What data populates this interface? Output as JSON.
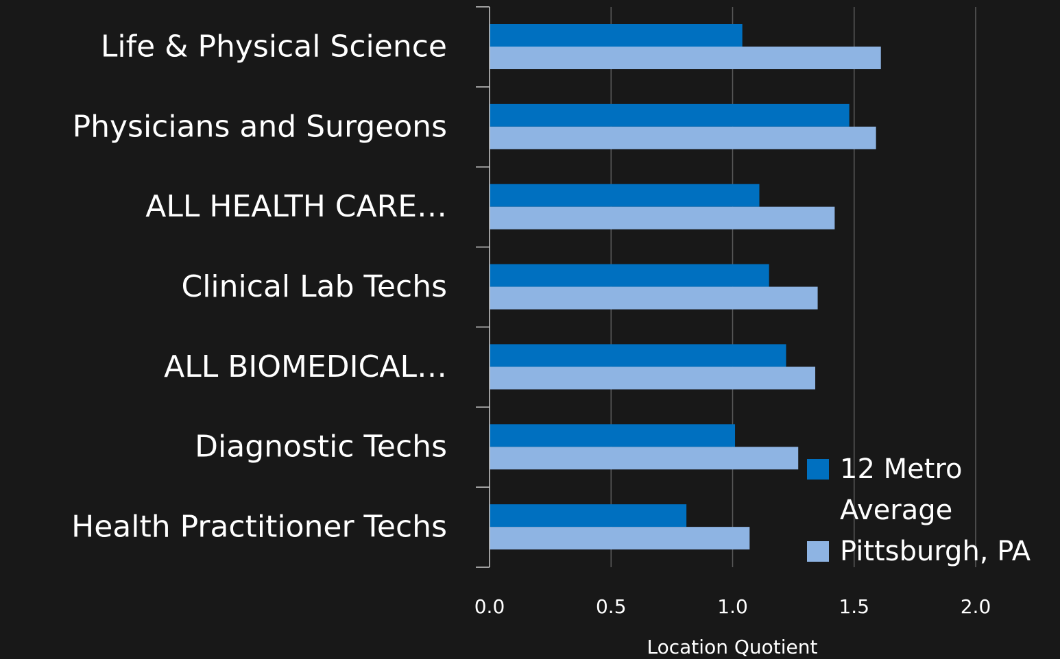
{
  "chart_data": {
    "type": "bar",
    "orientation": "horizontal",
    "categories": [
      "Life & Physical Science",
      "Physicians and Surgeons",
      "ALL HEALTH CARE…",
      "Clinical Lab Techs",
      "ALL BIOMEDICAL…",
      "Diagnostic Techs",
      "Health Practitioner Techs"
    ],
    "series": [
      {
        "name": "12 Metro Average",
        "color": "#0070c0",
        "values": [
          1.04,
          1.48,
          1.11,
          1.15,
          1.22,
          1.01,
          0.81
        ]
      },
      {
        "name": "Pittsburgh, PA",
        "color": "#8eb4e3",
        "values": [
          1.61,
          1.59,
          1.42,
          1.35,
          1.34,
          1.27,
          1.07
        ]
      }
    ],
    "x_label": "Location Quotient",
    "xlim": [
      0,
      2.0
    ],
    "xticks": [
      {
        "value": 0,
        "label": "0.0"
      },
      {
        "value": 0.5,
        "label": "0.5"
      },
      {
        "value": 1.0,
        "label": "1.0"
      },
      {
        "value": 1.5,
        "label": "1.5"
      },
      {
        "value": 2.0,
        "label": "2.0"
      }
    ],
    "grid": true,
    "legend": "right"
  }
}
